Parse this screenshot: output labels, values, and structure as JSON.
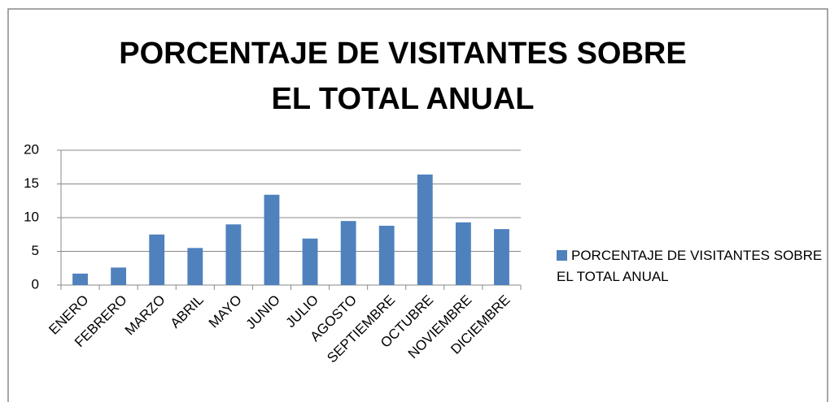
{
  "chart_data": {
    "type": "bar",
    "title": "PORCENTAJE DE VISITANTES SOBRE EL TOTAL ANUAL",
    "categories": [
      "ENERO",
      "FEBRERO",
      "MARZO",
      "ABRIL",
      "MAYO",
      "JUNIO",
      "JULIO",
      "AGOSTO",
      "SEPTIEMBRE",
      "OCTUBRE",
      "NOVIEMBRE",
      "DICIEMBRE"
    ],
    "series": [
      {
        "name": "PORCENTAJE DE VISITANTES SOBRE EL TOTAL ANUAL",
        "color": "#4f81bd",
        "values": [
          1.7,
          2.6,
          7.5,
          5.5,
          9.0,
          13.4,
          6.9,
          9.5,
          8.8,
          16.4,
          9.3,
          8.3
        ]
      }
    ],
    "ylim": [
      0,
      20
    ],
    "yticks": [
      0,
      5,
      10,
      15,
      20
    ],
    "grid": true,
    "legend": "right"
  }
}
